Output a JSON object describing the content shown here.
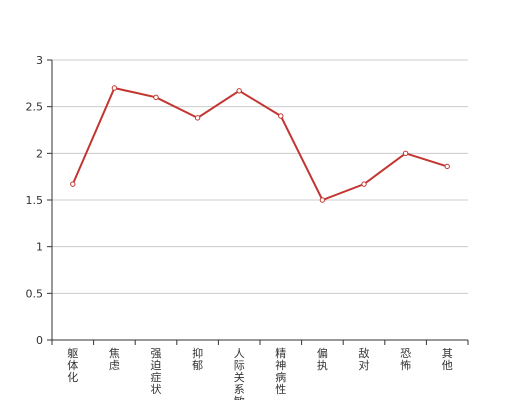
{
  "chart_data": {
    "type": "line",
    "categories": [
      "躯体化",
      "焦虑",
      "强迫症状",
      "抑郁",
      "人际关系敏感",
      "精神病性",
      "偏执",
      "敌对",
      "恐怖",
      "其他"
    ],
    "series": [
      {
        "values": [
          1.67,
          2.7,
          2.6,
          2.38,
          2.67,
          2.4,
          1.5,
          1.67,
          2.0,
          1.86
        ],
        "color": "#c23531"
      }
    ],
    "title": "",
    "xlabel": "",
    "ylabel": "",
    "ylim": [
      0,
      3
    ],
    "yticks": [
      "0",
      "0.5",
      "1",
      "1.5",
      "2",
      "2.5",
      "3"
    ],
    "grid": true
  }
}
